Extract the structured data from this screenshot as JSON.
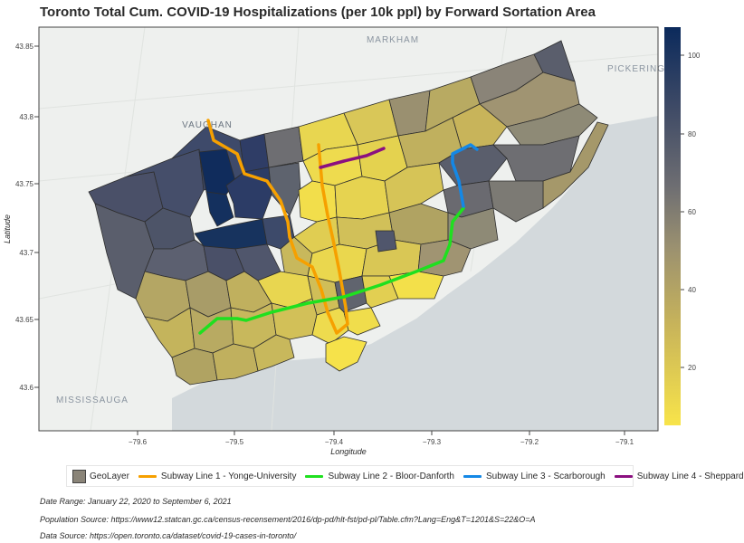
{
  "title": "Toronto Total Cum. COVID-19 Hospitalizations (per 10k ppl) by Forward Sortation Area",
  "axes": {
    "xlabel": "Longitude",
    "ylabel": "Latitude",
    "xticks": [
      "−79.6",
      "−79.5",
      "−79.4",
      "−79.3",
      "−79.2",
      "−79.1"
    ],
    "yticks": [
      "43.85",
      "43.8",
      "43.75",
      "43.7",
      "43.65",
      "43.6"
    ]
  },
  "map_labels": {
    "markham": "MARKHAM",
    "vaughan": "VAUGHAN",
    "pickering": "PICKERING",
    "mississauga": "MISSISSAUGA"
  },
  "colorbar": {
    "ticks": [
      "100",
      "80",
      "60",
      "40",
      "20"
    ],
    "range": [
      5,
      106
    ],
    "colors": {
      "low": "#f8e44a",
      "mid": "#8a8478",
      "high": "#0b2a5c"
    }
  },
  "legend": {
    "geolayer": "GeoLayer",
    "line1": "Subway Line 1 - Yonge-University",
    "line2": "Subway Line 2 - Bloor-Danforth",
    "line3": "Subway Line 3 - Scarborough",
    "line4": "Subway Line 4 - Sheppard"
  },
  "subway_colors": {
    "line1": "#f6a000",
    "line2": "#1fe01f",
    "line3": "#1488e6",
    "line4": "#8b1080"
  },
  "notes": {
    "date_range": "Date Range: January 22, 2020 to September 6, 2021",
    "population_source": "Population Source: https://www12.statcan.gc.ca/census-recensement/2016/dp-pd/hlt-fst/pd-pl/Table.cfm?Lang=Eng&T=1201&S=22&O=A",
    "data_source": "Data Source: https://open.toronto.ca/dataset/covid-19-cases-in-toronto/"
  }
}
